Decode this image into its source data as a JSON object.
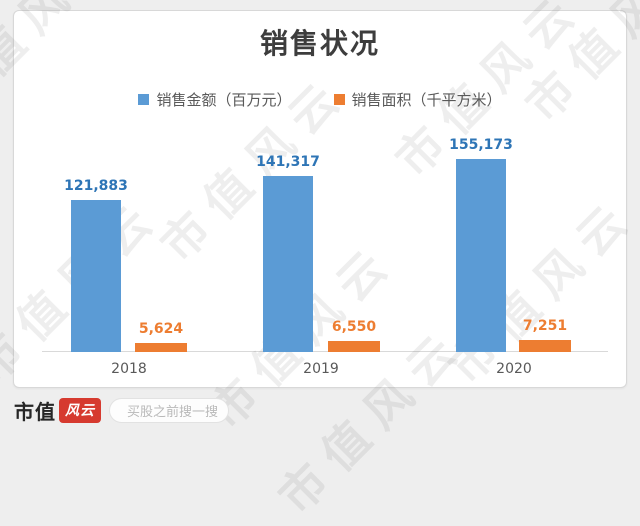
{
  "watermark": {
    "text": "市值风云"
  },
  "chart_data": {
    "type": "bar",
    "title": "销售状况",
    "categories": [
      "2018",
      "2019",
      "2020"
    ],
    "series": [
      {
        "name": "销售金额（百万元）",
        "values": [
          121883,
          141317,
          155173
        ],
        "labels": [
          "121,883",
          "141,317",
          "155,173"
        ],
        "color": "#5B9BD5",
        "label_color": "#2E75B6",
        "axis": "primary"
      },
      {
        "name": "销售面积（千平方米）",
        "values": [
          5624,
          6550,
          7251
        ],
        "labels": [
          "5,624",
          "6,550",
          "7,251"
        ],
        "color": "#ED7D31",
        "label_color": "#ED7D31",
        "axis": "secondary"
      }
    ],
    "legend_position": "top",
    "grid": false,
    "data_labels": true,
    "xlabel": "",
    "ylabel": ""
  },
  "footer": {
    "brand_prefix": "市值",
    "brand_badge": "风云",
    "badge_color": "#d63a2f",
    "search_placeholder": "买股之前搜一搜"
  }
}
